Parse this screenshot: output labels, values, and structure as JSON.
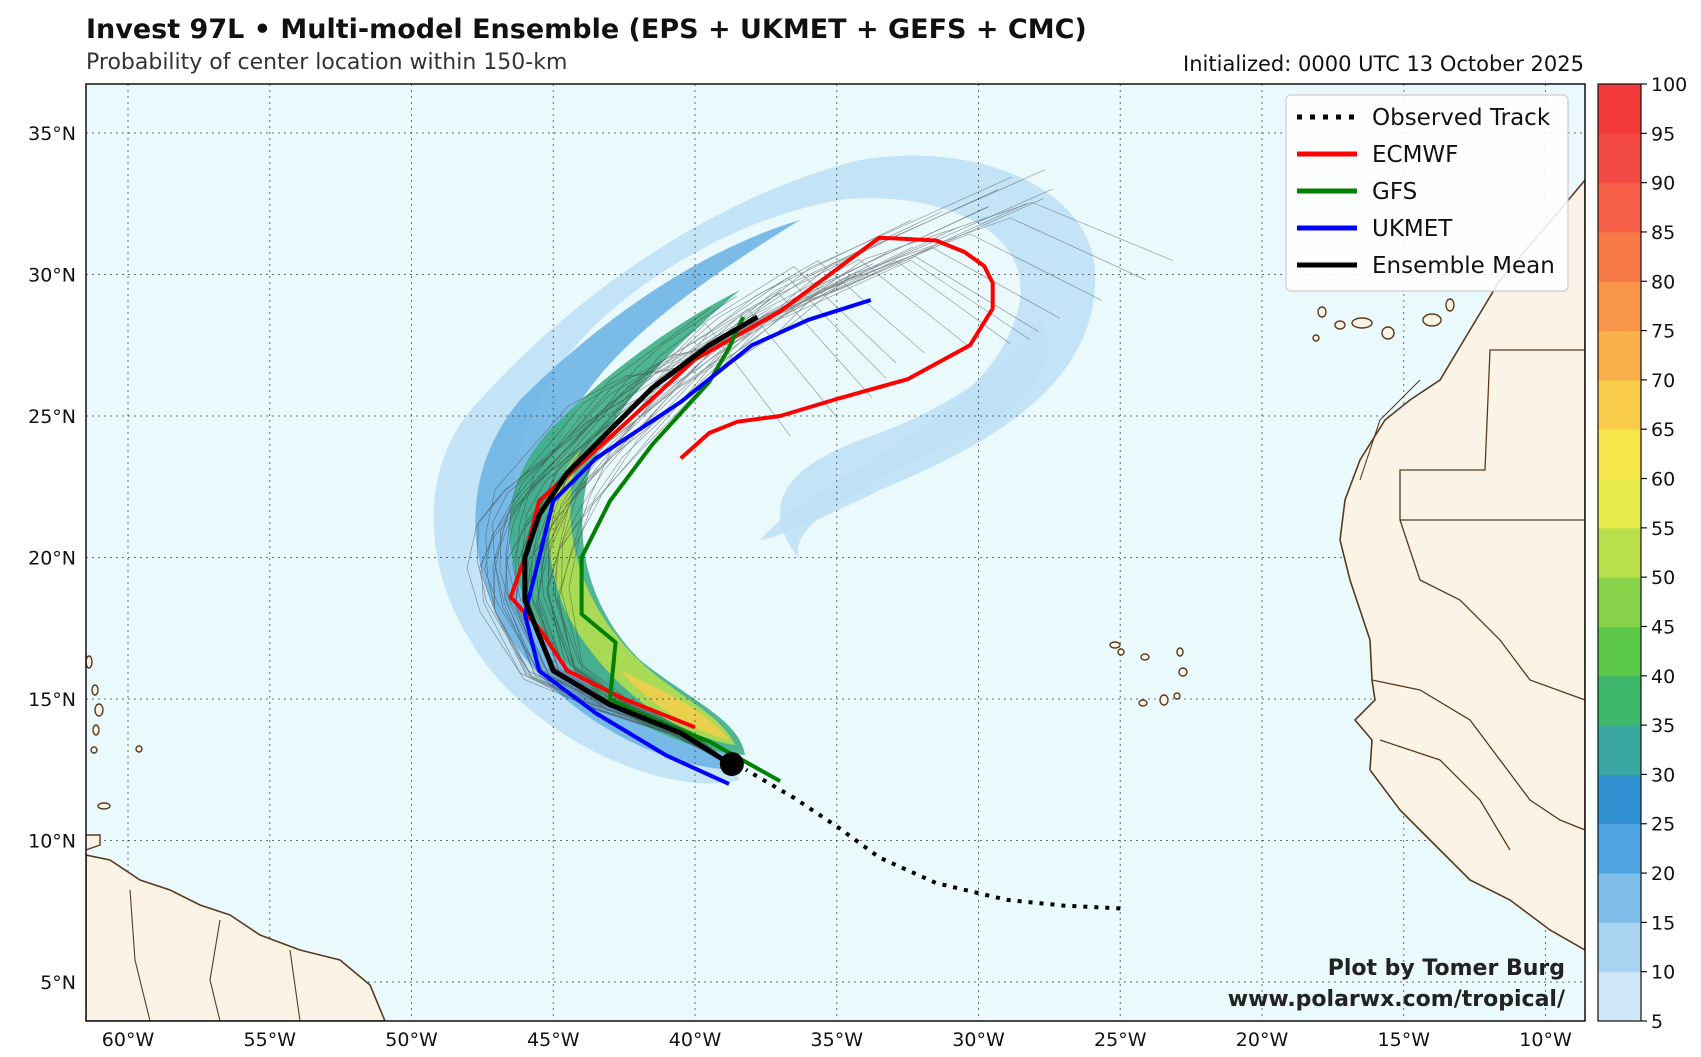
{
  "header": {
    "title": "Invest 97L • Multi-model Ensemble (EPS + UKMET + GEFS + CMC)",
    "subtitle": "Probability of center location within 150-km",
    "initialized": "Initialized: 0000 UTC 13 October 2025"
  },
  "map": {
    "lon_labels": [
      "60°W",
      "55°W",
      "50°W",
      "45°W",
      "40°W",
      "35°W",
      "30°W",
      "25°W",
      "20°W",
      "15°W",
      "10°W"
    ],
    "lat_labels": [
      "35°N",
      "30°N",
      "25°N",
      "20°N",
      "15°N",
      "10°N",
      "5°N"
    ],
    "ocean_color": "#eaf9fc",
    "land_color": "#fbf4e6",
    "border_color": "#5a3a1e"
  },
  "legend": {
    "items": [
      {
        "label": "Observed Track",
        "color": "#000000",
        "style": "dotted"
      },
      {
        "label": "ECMWF",
        "color": "#ff0000",
        "style": "solid"
      },
      {
        "label": "GFS",
        "color": "#008000",
        "style": "solid"
      },
      {
        "label": "UKMET",
        "color": "#0000ff",
        "style": "solid"
      },
      {
        "label": "Ensemble Mean",
        "color": "#000000",
        "style": "solid"
      }
    ]
  },
  "colorbar": {
    "ticks": [
      "5",
      "10",
      "15",
      "20",
      "25",
      "30",
      "35",
      "40",
      "45",
      "50",
      "55",
      "60",
      "65",
      "70",
      "75",
      "80",
      "85",
      "90",
      "95",
      "100"
    ],
    "colors": [
      "#cfe8f7",
      "#a9d4f1",
      "#7fbde9",
      "#4fa3e0",
      "#2f8fd0",
      "#3aa7a0",
      "#3db86a",
      "#5bc84a",
      "#86d34a",
      "#b9e04a",
      "#e8ec4a",
      "#f6e64a",
      "#f9cc4a",
      "#f9b04a",
      "#f89548",
      "#f77a46",
      "#f56046",
      "#f44a46",
      "#f23a3a"
    ]
  },
  "credit": {
    "line1": "Plot by Tomer Burg",
    "line2": "www.polarwx.com/tropical/"
  },
  "tracks": {
    "observed": [
      [
        -25.0,
        7.6
      ],
      [
        -27,
        7.7
      ],
      [
        -29,
        7.9
      ],
      [
        -31.5,
        8.5
      ],
      [
        -33.5,
        9.4
      ],
      [
        -35,
        10.5
      ],
      [
        -36.5,
        11.5
      ],
      [
        -38.2,
        12.5
      ]
    ],
    "ecmwf": [
      [
        -40.0,
        14.0
      ],
      [
        -42.5,
        15.0
      ],
      [
        -44.5,
        16.0
      ],
      [
        -45.5,
        17.5
      ],
      [
        -46.5,
        18.6
      ],
      [
        -46.0,
        20.0
      ],
      [
        -45.5,
        22.0
      ],
      [
        -42.5,
        24.7
      ],
      [
        -40.0,
        27.0
      ],
      [
        -37.0,
        28.7
      ],
      [
        -33.5,
        31.3
      ],
      [
        -31.5,
        31.2
      ],
      [
        -30.5,
        30.8
      ],
      [
        -29.8,
        30.3
      ],
      [
        -29.5,
        29.7
      ],
      [
        -29.5,
        28.8
      ],
      [
        -30.3,
        27.5
      ],
      [
        -32.5,
        26.3
      ],
      [
        -35.0,
        25.6
      ],
      [
        -37.0,
        25.0
      ],
      [
        -38.5,
        24.8
      ],
      [
        -39.5,
        24.4
      ],
      [
        -40.5,
        23.5
      ]
    ],
    "gfs": [
      [
        -37.0,
        12.1
      ],
      [
        -39.5,
        13.5
      ],
      [
        -42.0,
        14.5
      ],
      [
        -43.0,
        15.0
      ],
      [
        -42.8,
        17.0
      ],
      [
        -44.0,
        18.0
      ],
      [
        -44.0,
        20.0
      ],
      [
        -43.0,
        22.0
      ],
      [
        -41.5,
        24.0
      ],
      [
        -39.5,
        26.2
      ],
      [
        -38.8,
        27.4
      ],
      [
        -38.3,
        28.5
      ]
    ],
    "ukmet": [
      [
        -38.8,
        12.0
      ],
      [
        -41.0,
        13.0
      ],
      [
        -43.5,
        14.5
      ],
      [
        -45.5,
        16.0
      ],
      [
        -46.0,
        18.0
      ],
      [
        -45.5,
        20.0
      ],
      [
        -45.0,
        22.0
      ],
      [
        -43.5,
        23.5
      ],
      [
        -40.5,
        25.5
      ],
      [
        -38.0,
        27.5
      ],
      [
        -36.0,
        28.4
      ],
      [
        -33.8,
        29.1
      ]
    ],
    "mean": [
      [
        -38.6,
        12.6
      ],
      [
        -40.5,
        13.8
      ],
      [
        -43.0,
        14.8
      ],
      [
        -45.0,
        16.0
      ],
      [
        -46.0,
        18.5
      ],
      [
        -46.0,
        20.0
      ],
      [
        -45.5,
        21.5
      ],
      [
        -44.5,
        23.0
      ],
      [
        -41.5,
        26.0
      ],
      [
        -39.5,
        27.5
      ],
      [
        -37.8,
        28.5
      ]
    ],
    "genesis_point": [
      -38.7,
      12.7
    ]
  }
}
